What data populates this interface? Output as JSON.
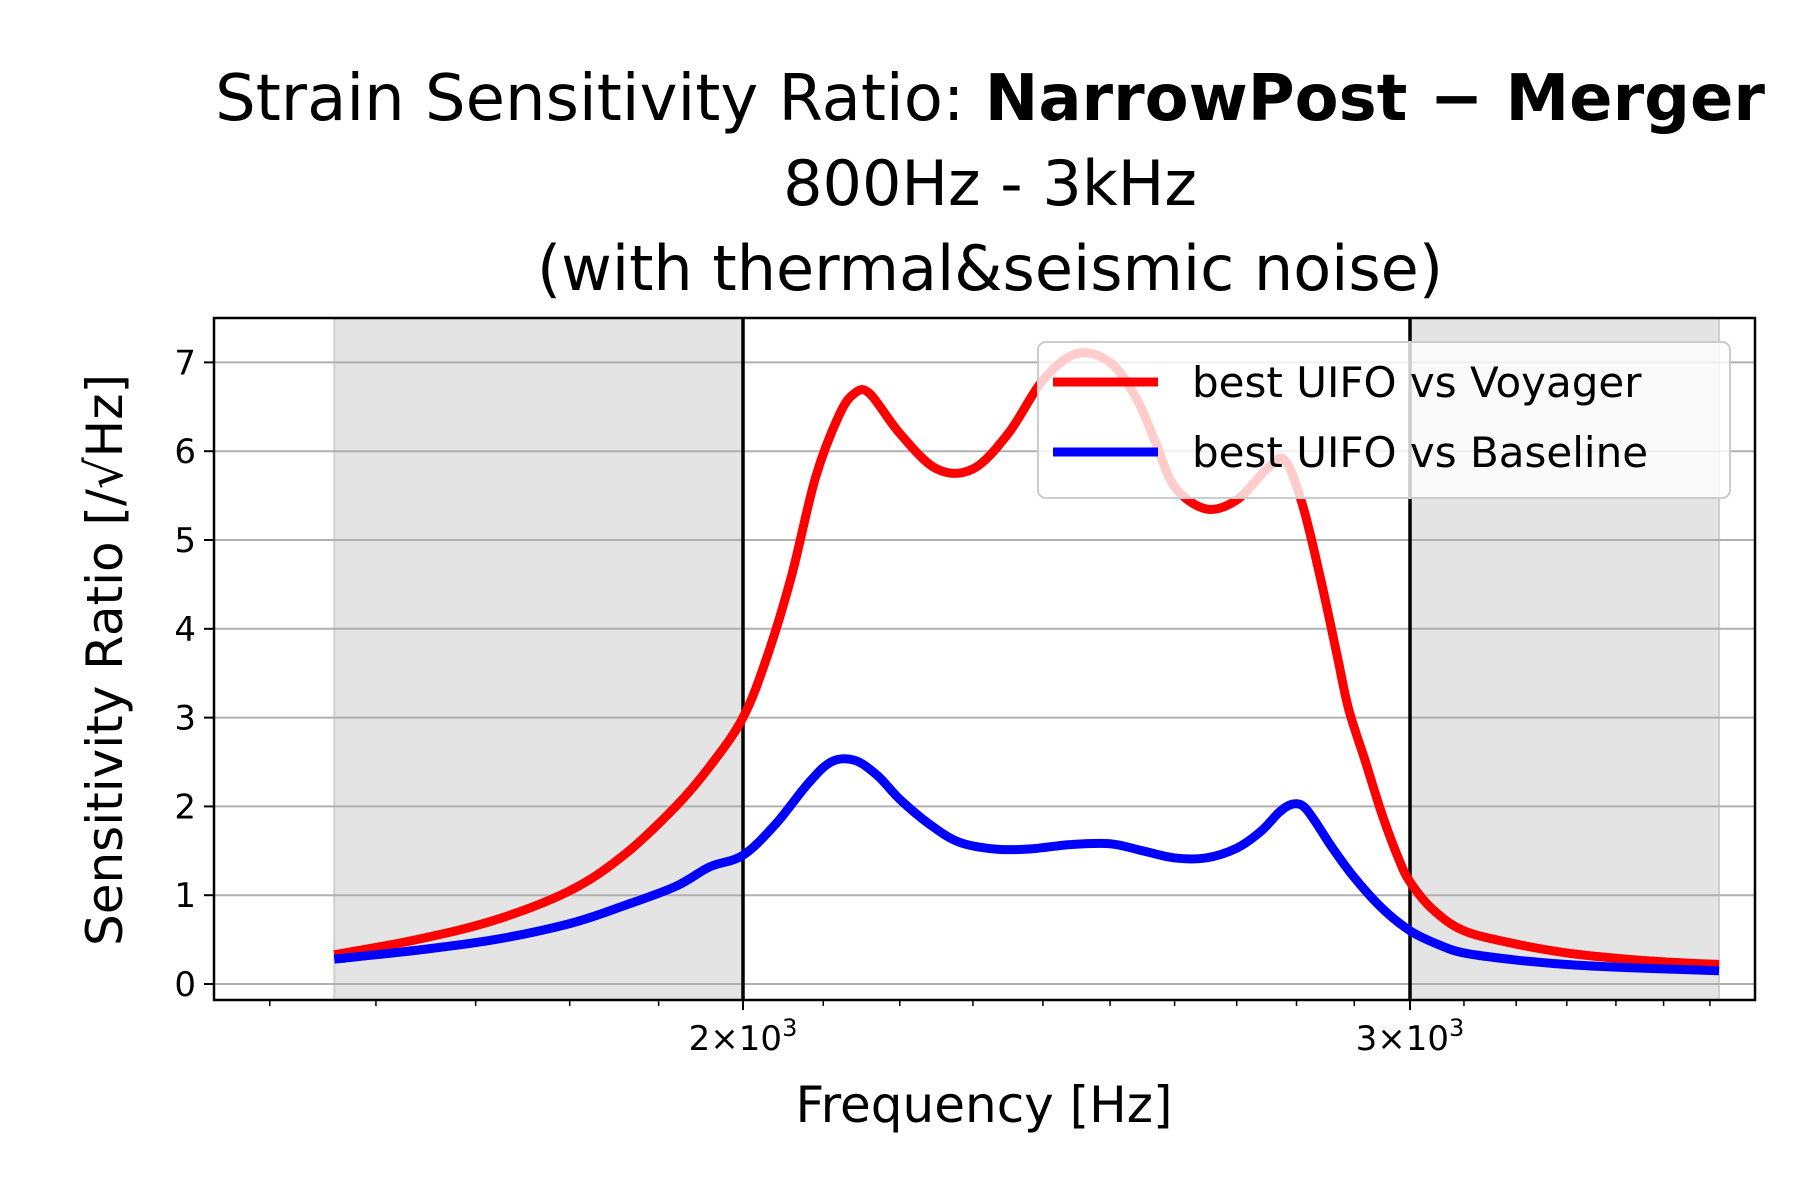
{
  "chart_data": {
    "type": "line",
    "title": {
      "prefix": "Strain Sensitivity Ratio: ",
      "bold": "NarrowPost − Merger",
      "line2": "800Hz - 3kHz",
      "line3": "(with thermal&seismic noise)"
    },
    "xlabel": "Frequency [Hz]",
    "ylabel": "Sensitivity Ratio [/√Hz]",
    "xscale": "log",
    "xlim": [
      1450,
      3700
    ],
    "ylim": [
      -0.18,
      7.5
    ],
    "x_ticks": [
      {
        "value": 2000,
        "base": "2×10",
        "exp": "3"
      },
      {
        "value": 3000,
        "base": "3×10",
        "exp": "3"
      }
    ],
    "y_ticks": [
      0,
      1,
      2,
      3,
      4,
      5,
      6,
      7
    ],
    "grid": "horizontal",
    "band_lines": [
      2000,
      3000
    ],
    "shaded_regions": [
      [
        1560,
        2000
      ],
      [
        3000,
        3620
      ]
    ],
    "legend_position": "top-right",
    "series": [
      {
        "name": "best UIFO vs Voyager",
        "color": "#ff0000",
        "x": [
          1560,
          1640,
          1720,
          1800,
          1860,
          1920,
          1960,
          2000,
          2030,
          2060,
          2090,
          2120,
          2140,
          2160,
          2200,
          2250,
          2300,
          2350,
          2400,
          2450,
          2500,
          2540,
          2570,
          2600,
          2650,
          2700,
          2750,
          2780,
          2810,
          2840,
          2870,
          2890,
          2920,
          2950,
          2980,
          3000,
          3040,
          3100,
          3200,
          3300,
          3400,
          3500,
          3620
        ],
        "y": [
          0.33,
          0.5,
          0.72,
          1.05,
          1.45,
          2.0,
          2.45,
          3.0,
          3.7,
          4.6,
          5.7,
          6.4,
          6.65,
          6.65,
          6.2,
          5.8,
          5.8,
          6.2,
          6.8,
          7.1,
          7.0,
          6.6,
          6.1,
          5.6,
          5.35,
          5.45,
          5.8,
          5.9,
          5.4,
          4.6,
          3.7,
          3.1,
          2.5,
          1.9,
          1.4,
          1.15,
          0.85,
          0.6,
          0.45,
          0.35,
          0.29,
          0.25,
          0.22
        ]
      },
      {
        "name": "best UIFO vs Baseline",
        "color": "#0000ff",
        "x": [
          1560,
          1640,
          1720,
          1800,
          1860,
          1920,
          1960,
          2000,
          2040,
          2080,
          2110,
          2140,
          2170,
          2200,
          2240,
          2280,
          2330,
          2380,
          2440,
          2500,
          2550,
          2600,
          2650,
          2700,
          2740,
          2770,
          2790,
          2810,
          2830,
          2860,
          2900,
          2950,
          3000,
          3050,
          3100,
          3200,
          3300,
          3400,
          3500,
          3620
        ],
        "y": [
          0.28,
          0.38,
          0.5,
          0.68,
          0.88,
          1.1,
          1.32,
          1.45,
          1.8,
          2.25,
          2.5,
          2.52,
          2.35,
          2.08,
          1.8,
          1.6,
          1.52,
          1.52,
          1.57,
          1.58,
          1.5,
          1.42,
          1.42,
          1.53,
          1.72,
          1.93,
          2.02,
          2.01,
          1.85,
          1.55,
          1.2,
          0.85,
          0.6,
          0.45,
          0.35,
          0.27,
          0.22,
          0.19,
          0.17,
          0.15
        ]
      }
    ]
  }
}
